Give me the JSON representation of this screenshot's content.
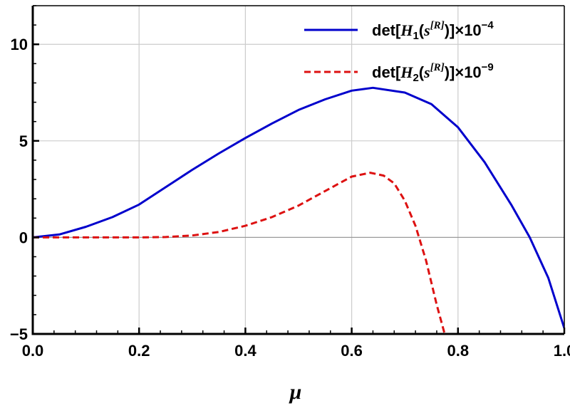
{
  "chart_data": {
    "type": "line",
    "title": "",
    "xlabel": "μ",
    "ylabel": "",
    "xlim": [
      0,
      1
    ],
    "ylim": [
      -5,
      12
    ],
    "grid": true,
    "legend_position": "top-right",
    "x_ticks": [
      0.0,
      0.2,
      0.4,
      0.6,
      0.8,
      1.0
    ],
    "x_tick_labels": [
      "0.0",
      "0.2",
      "0.4",
      "0.6",
      "0.8",
      "1.0"
    ],
    "y_ticks": [
      -5,
      0,
      5,
      10
    ],
    "y_tick_labels": [
      "−5",
      "0",
      "5",
      "10"
    ],
    "series": [
      {
        "name": "det[H1(s[R])]×10−4",
        "legend": {
          "prefix": "det[",
          "var": "H",
          "sub": "1",
          "mid": "(",
          "svar": "s",
          "sup": "[R]",
          "suffix": ")]×10",
          "exp": "−4"
        },
        "color": "#0000cc",
        "style": "solid",
        "x": [
          0.0,
          0.05,
          0.1,
          0.15,
          0.2,
          0.25,
          0.3,
          0.35,
          0.4,
          0.45,
          0.5,
          0.55,
          0.6,
          0.64,
          0.7,
          0.75,
          0.8,
          0.85,
          0.9,
          0.935,
          0.97,
          1.0
        ],
        "y": [
          0.0,
          0.15,
          0.55,
          1.05,
          1.7,
          2.6,
          3.5,
          4.35,
          5.15,
          5.9,
          6.6,
          7.15,
          7.6,
          7.75,
          7.5,
          6.9,
          5.7,
          3.9,
          1.7,
          0.0,
          -2.1,
          -4.7
        ]
      },
      {
        "name": "det[H2(s[R])]×10−9",
        "legend": {
          "prefix": "det[",
          "var": "H",
          "sub": "2",
          "mid": "(",
          "svar": "s",
          "sup": "[R]",
          "suffix": ")]×10",
          "exp": "−9"
        },
        "color": "#dd1111",
        "style": "dashed",
        "x": [
          0.0,
          0.1,
          0.2,
          0.25,
          0.3,
          0.35,
          0.4,
          0.45,
          0.5,
          0.55,
          0.6,
          0.635,
          0.66,
          0.68,
          0.7,
          0.72,
          0.74,
          0.76,
          0.775
        ],
        "y": [
          0.0,
          0.0,
          0.0,
          0.02,
          0.1,
          0.28,
          0.6,
          1.05,
          1.65,
          2.4,
          3.15,
          3.35,
          3.2,
          2.8,
          1.9,
          0.6,
          -1.2,
          -3.5,
          -5.0
        ]
      }
    ]
  }
}
